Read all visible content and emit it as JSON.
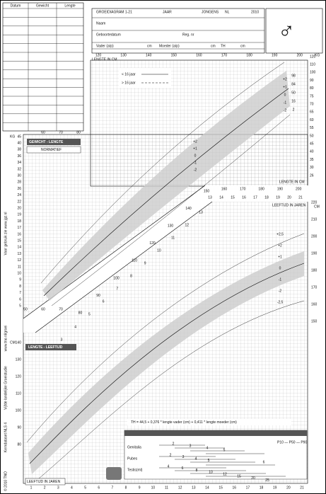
{
  "log_table": {
    "headers": [
      "Datum",
      "Gewicht",
      "Lengte"
    ]
  },
  "header": {
    "title": "GROEIDIAGRAM 1-21",
    "year_label": "JAAR",
    "sex": "JONGENS",
    "country": "NL",
    "edition": "2010",
    "name_label": "Naam",
    "birthdate_label": "Geboortedatum",
    "reg_label": "Reg. nr",
    "father_label": "Vader (a/p)",
    "mother_label": "Moeder (a/p)",
    "target_label": "TH",
    "unit": "cm",
    "symbol": "♂"
  },
  "weight_for_length": {
    "title": "GEWICHT - LENGTE",
    "subtitle": "NORMATIEF",
    "length_axis_label": "LENGTE IN CM",
    "weight_unit": "KG",
    "legend": [
      "< 16 jaar",
      "> 16 jaar"
    ],
    "top_ticks": [
      120,
      130,
      140,
      150,
      160,
      170,
      180,
      190,
      200
    ],
    "right_ticks": [
      120,
      110,
      100,
      90,
      80,
      75,
      70,
      65,
      60,
      55,
      50,
      45,
      40,
      35,
      30,
      26
    ],
    "left_ticks": [
      45,
      40,
      38,
      36,
      34,
      32,
      30,
      28,
      26,
      24,
      22,
      20,
      19,
      18,
      17,
      16,
      15,
      14,
      13,
      12,
      11,
      10,
      9,
      8,
      7,
      6,
      5
    ],
    "left_bottom_ticks": [
      50,
      60,
      70
    ],
    "left_top_ticks": [
      60,
      70,
      80
    ],
    "diagonal_ticks": [
      150,
      140,
      130,
      120,
      110,
      100,
      90,
      80
    ],
    "sd_labels": [
      "+2",
      "+1",
      "0",
      "-1",
      "-2"
    ],
    "percentiles": [
      "98",
      "84",
      "50",
      "16",
      "2"
    ]
  },
  "length_for_age": {
    "title": "LENGTE - LEEFTIJD",
    "length_unit": "CM",
    "age_axis_label": "LEEFTIJD IN JAREN",
    "length_axis_label": "LENGTE IN CM",
    "length_ticks_top": [
      160,
      170,
      180,
      190,
      200
    ],
    "age_ticks_top": [
      13,
      14,
      15,
      16,
      17,
      18,
      19,
      20,
      21
    ],
    "right_ticks": [
      220,
      210,
      200,
      190,
      180,
      170,
      160,
      150
    ],
    "left_ticks": [
      140,
      130,
      120,
      110,
      100,
      90,
      80
    ],
    "age_ticks": [
      1,
      2,
      3,
      4,
      5,
      6,
      7,
      8,
      9,
      10,
      11,
      12,
      13,
      14,
      15,
      16,
      17,
      18,
      19,
      20,
      21
    ],
    "diagonal_age_ticks": [
      13,
      12,
      11,
      10,
      9,
      8,
      7,
      6,
      5,
      4,
      3
    ],
    "sd_labels": [
      "+2,5",
      "+2",
      "+1",
      "0",
      "-1",
      "-2",
      "-2,5"
    ],
    "formula": "TH = 44,5 + 0,376 * lengte vader (cm) + 0,411 * lengte moeder (cm)"
  },
  "puberty": {
    "labels": [
      "Genitalia",
      "Pubes",
      "Testis(ml)"
    ],
    "percentile_legend": "P10 — P50 — P90",
    "genitalia": [
      "2",
      "3",
      "4",
      "5"
    ],
    "pubes": [
      "2",
      "3",
      "4",
      "5",
      "6"
    ],
    "testis": [
      "4",
      "6",
      "8",
      "10",
      "12",
      "15",
      "20",
      "25"
    ]
  },
  "side_texts": [
    "© 2010 TNO",
    "Kerndataset NLS 4",
    "Vijfde landelijke Groeistudie",
    "www.tno.nl/groei",
    "Voor gebruik zie www.jgz.nl"
  ]
}
